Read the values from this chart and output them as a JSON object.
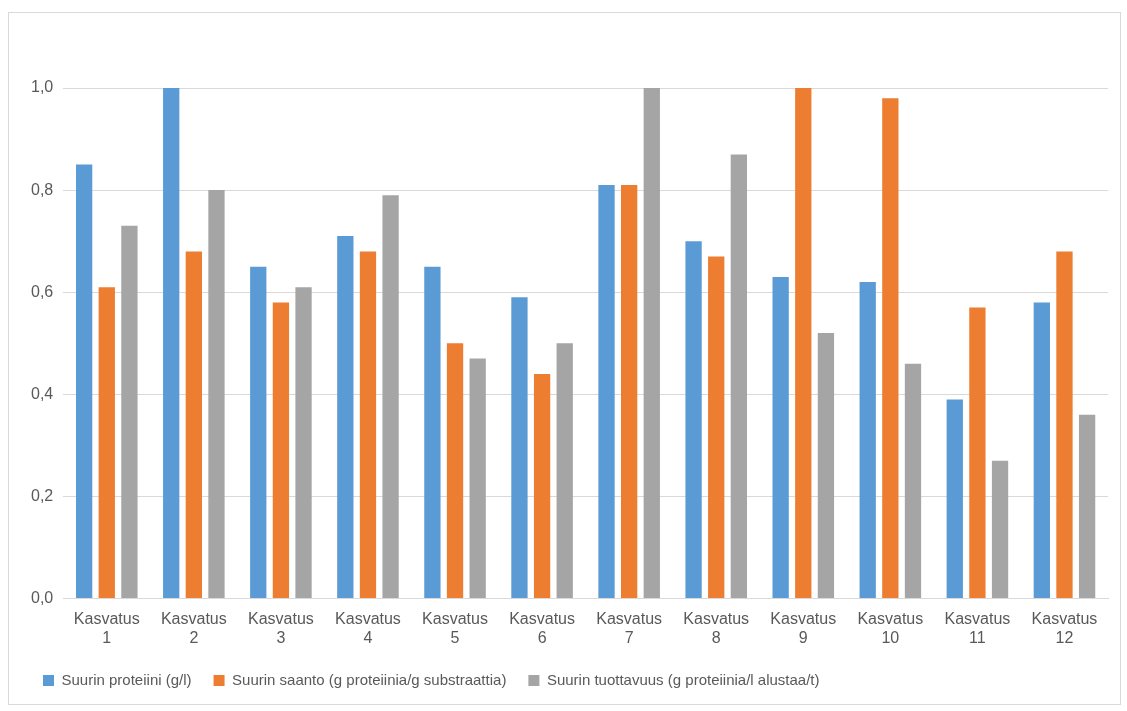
{
  "chart_data": {
    "type": "bar",
    "categories": [
      "Kasvatus 1",
      "Kasvatus 2",
      "Kasvatus 3",
      "Kasvatus 4",
      "Kasvatus 5",
      "Kasvatus 6",
      "Kasvatus 7",
      "Kasvatus 8",
      "Kasvatus 9",
      "Kasvatus 10",
      "Kasvatus 11",
      "Kasvatus 12"
    ],
    "series": [
      {
        "name": "Suurin proteiini (g/l)",
        "color": "#5b9bd5",
        "values": [
          0.85,
          1.0,
          0.65,
          0.71,
          0.65,
          0.59,
          0.81,
          0.7,
          0.63,
          0.62,
          0.39,
          0.58
        ]
      },
      {
        "name": "Suurin saanto (g proteiinia/g substraattia)",
        "color": "#ed7d31",
        "values": [
          0.61,
          0.68,
          0.58,
          0.68,
          0.5,
          0.44,
          0.81,
          0.67,
          1.0,
          0.98,
          0.57,
          0.68
        ]
      },
      {
        "name": "Suurin tuottavuus (g proteiinia/l alustaa/t)",
        "color": "#a5a5a5",
        "values": [
          0.73,
          0.8,
          0.61,
          0.79,
          0.47,
          0.5,
          1.0,
          0.87,
          0.52,
          0.46,
          0.27,
          0.36
        ]
      }
    ],
    "ylim": [
      0,
      1.0
    ],
    "yticks": [
      {
        "value": 0,
        "label": "0,0"
      },
      {
        "value": 0.2,
        "label": "0,2"
      },
      {
        "value": 0.4,
        "label": "0,4"
      },
      {
        "value": 0.6,
        "label": "0,6"
      },
      {
        "value": 0.8,
        "label": "0,8"
      },
      {
        "value": 1.0,
        "label": "1,0"
      }
    ],
    "grid": "y",
    "legend": "bottom"
  }
}
